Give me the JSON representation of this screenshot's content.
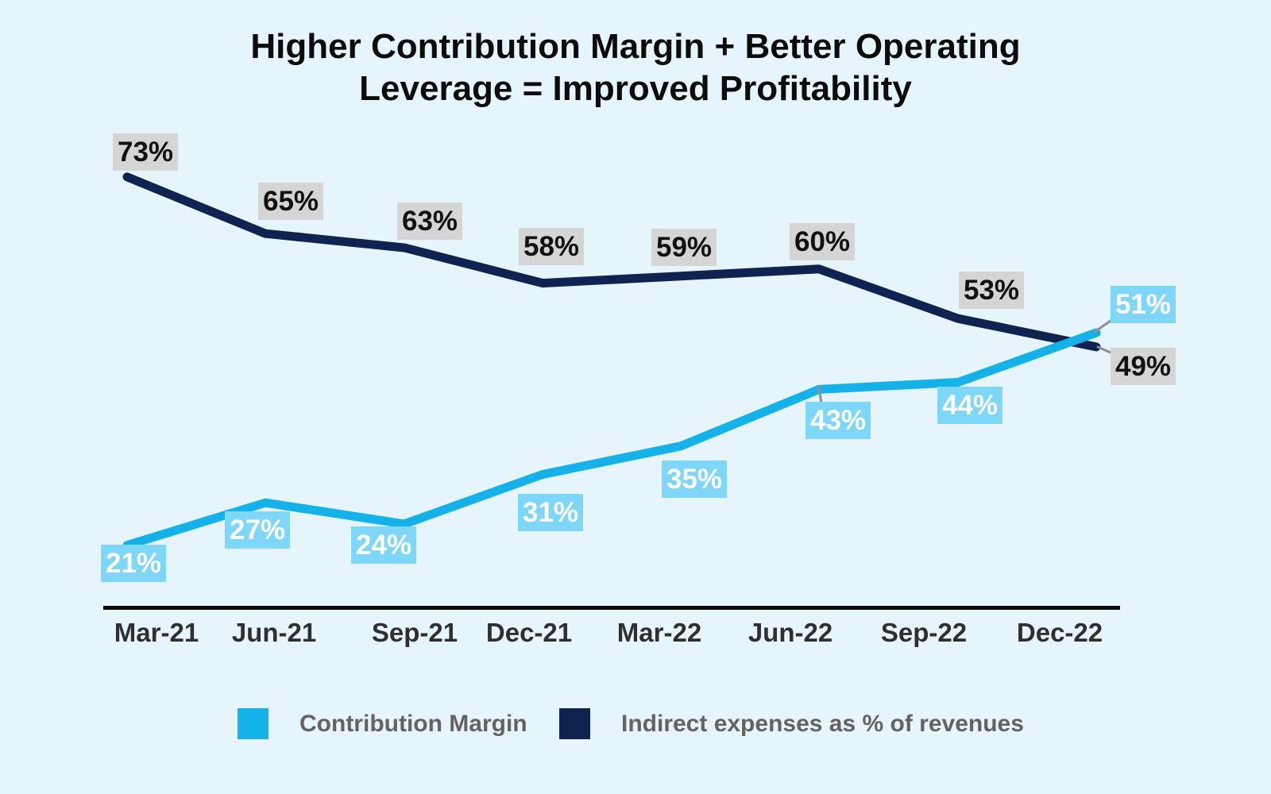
{
  "title": {
    "line1": "Higher Contribution Margin + Better Operating",
    "line2": "Leverage = Improved Profitability"
  },
  "chart_data": {
    "type": "line",
    "categories": [
      "Mar-21",
      "Jun-21",
      "Sep-21",
      "Dec-21",
      "Mar-22",
      "Jun-22",
      "Sep-22",
      "Dec-22"
    ],
    "series": [
      {
        "name": "Contribution Margin",
        "slug": "contribution-margin",
        "values": [
          21,
          27,
          24,
          31,
          35,
          43,
          44,
          51
        ],
        "labels": [
          "21%",
          "27%",
          "24%",
          "31%",
          "35%",
          "43%",
          "44%",
          "51%"
        ],
        "color": "#15b2ea",
        "label_bg": "#7ed6f8",
        "label_color": "#ffffff"
      },
      {
        "name": "Indirect expenses as % of revenues",
        "slug": "indirect-expenses",
        "values": [
          73,
          65,
          63,
          58,
          59,
          60,
          53,
          49
        ],
        "labels": [
          "73%",
          "65%",
          "63%",
          "58%",
          "59%",
          "60%",
          "53%",
          "49%"
        ],
        "color": "#0e2350",
        "label_bg": "#d5d5d5",
        "label_color": "#111111"
      }
    ],
    "title": "Higher Contribution Margin + Better Operating Leverage = Improved Profitability",
    "xlabel": "",
    "ylabel": "",
    "ylim": [
      0,
      100
    ],
    "grid": false,
    "legend_position": "bottom",
    "axis_color": "#0b0b0b",
    "leader_line_color": "#8f8f8f"
  },
  "legend": {
    "items": [
      {
        "label": "Contribution Margin",
        "color": "#15b2ea"
      },
      {
        "label": "Indirect expenses as % of revenues",
        "color": "#0e2350"
      }
    ]
  }
}
